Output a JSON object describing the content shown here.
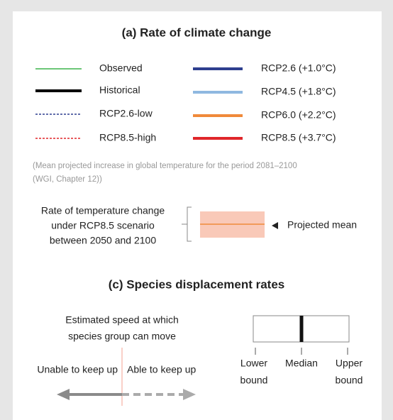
{
  "header": {
    "title": "(a) Rate of climate change"
  },
  "legend": {
    "left": [
      {
        "label": "Observed",
        "color": "#3cb44a"
      },
      {
        "label": "Historical",
        "color": "#000000"
      },
      {
        "label": "RCP2.6-low",
        "color": "#2e3f8f"
      },
      {
        "label": "RCP8.5-high",
        "color": "#e0262a"
      }
    ],
    "right": [
      {
        "label": "RCP2.6 (+1.0°C)",
        "color": "#2e3f8f"
      },
      {
        "label": "RCP4.5 (+1.8°C)",
        "color": "#8fb8e0"
      },
      {
        "label": "RCP6.0 (+2.2°C)",
        "color": "#f08a3a"
      },
      {
        "label": "RCP8.5 (+3.7°C)",
        "color": "#e0262a"
      }
    ]
  },
  "note": [
    "(Mean projected increase in global temperature for the period 2081–2100",
    "(WGI, Chapter 12))"
  ],
  "rate_label": [
    "Rate of temperature change",
    "under RCP8.5 scenario",
    "between 2050 and 2100"
  ],
  "projected_mean": "Projected mean",
  "section_c": {
    "title": "(c) Species displacement rates",
    "speed_label": [
      "Estimated speed at which",
      "species group can move"
    ],
    "unable": "Unable to keep up",
    "able": "Able to keep up",
    "lower": [
      "Lower",
      "bound"
    ],
    "median": "Median",
    "upper": [
      "Upper",
      "bound"
    ]
  }
}
